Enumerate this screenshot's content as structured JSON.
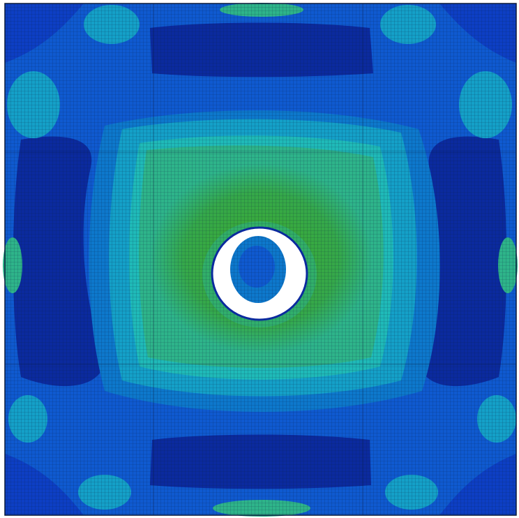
{
  "viewport": {
    "description_visible_text": "",
    "contour": {
      "levels": [
        {
          "name": "level-1",
          "color": "#0b2a9e"
        },
        {
          "name": "level-2",
          "color": "#0d3fc4"
        },
        {
          "name": "level-3",
          "color": "#0f5ad0"
        },
        {
          "name": "level-4",
          "color": "#0d78cc"
        },
        {
          "name": "level-5",
          "color": "#14a0c8"
        },
        {
          "name": "level-6",
          "color": "#1fbab8"
        },
        {
          "name": "level-7",
          "color": "#2eb48a"
        },
        {
          "name": "level-8",
          "color": "#35a84a"
        },
        {
          "name": "level-9",
          "color": "#3cab2e"
        }
      ],
      "mesh_line_color": "#0a1a3a",
      "hole_color": "#ffffff"
    }
  }
}
